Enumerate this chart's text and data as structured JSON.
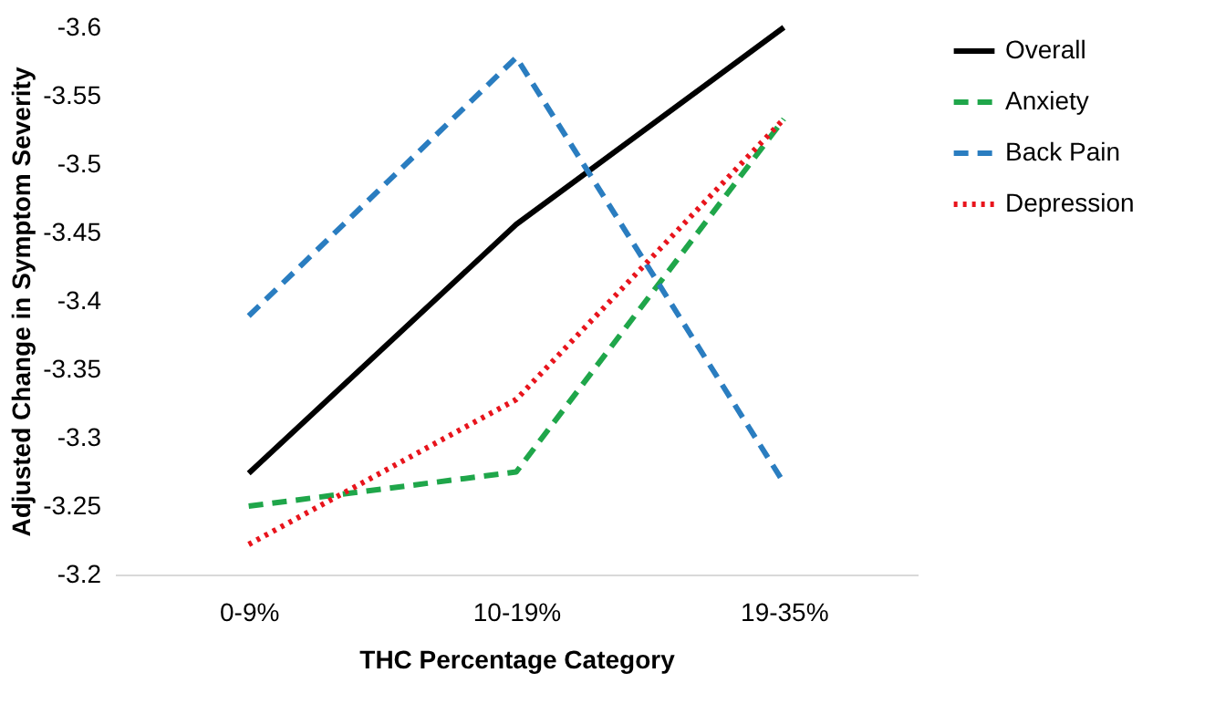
{
  "chart_data": {
    "type": "line",
    "xlabel": "THC Percentage Category",
    "ylabel": "Adjusted Change in Symptom Severity",
    "categories": [
      "0-9%",
      "10-19%",
      "19-35%"
    ],
    "series": [
      {
        "name": "Overall",
        "color": "#000000",
        "line_style": "solid",
        "values": [
          -3.274,
          -3.456,
          -3.6
        ]
      },
      {
        "name": "Anxiety",
        "color": "#1fa64a",
        "line_style": "dashed",
        "values": [
          -3.25,
          -3.275,
          -3.533
        ]
      },
      {
        "name": "Back Pain",
        "color": "#2a7dc0",
        "line_style": "dashed",
        "values": [
          -3.389,
          -3.578,
          -3.267
        ]
      },
      {
        "name": "Depression",
        "color": "#e8141c",
        "line_style": "dotted",
        "values": [
          -3.222,
          -3.328,
          -3.533
        ]
      }
    ],
    "ylim": [
      -3.2,
      -3.6
    ],
    "yticks": [
      -3.2,
      -3.25,
      -3.3,
      -3.35,
      -3.4,
      -3.45,
      -3.5,
      -3.55,
      -3.6
    ],
    "grid": false,
    "legend": "right",
    "marker": "none"
  }
}
